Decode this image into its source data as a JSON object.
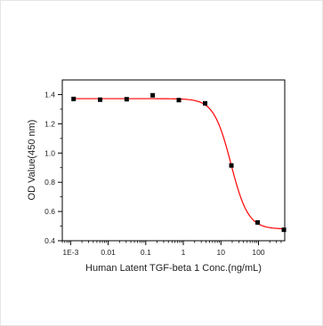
{
  "chart_data": {
    "type": "scatter",
    "title": "",
    "xlabel": "Human Latent TGF-beta 1  Conc.(ng/mL)",
    "ylabel": "OD Value(450 nm)",
    "x_scale": "log",
    "xlim": [
      0.0006,
      500
    ],
    "ylim": [
      0.4,
      1.5
    ],
    "x_ticks": [
      0.001,
      0.01,
      0.1,
      1,
      10,
      100
    ],
    "x_tick_labels": [
      "1E-3",
      "0.01",
      "0.1",
      "1",
      "10",
      "100"
    ],
    "y_ticks": [
      0.4,
      0.6,
      0.8,
      1.0,
      1.2,
      1.4
    ],
    "y_tick_labels": [
      "0.4",
      "0.6",
      "0.8",
      "1.0",
      "1.2",
      "1.4"
    ],
    "grid": false,
    "series": [
      {
        "color": "#000000",
        "marker": "square",
        "points": [
          {
            "x": 0.0012,
            "y": 1.37
          },
          {
            "x": 0.0061,
            "y": 1.365
          },
          {
            "x": 0.031,
            "y": 1.368
          },
          {
            "x": 0.153,
            "y": 1.395
          },
          {
            "x": 0.76,
            "y": 1.362
          },
          {
            "x": 3.8,
            "y": 1.34
          },
          {
            "x": 19,
            "y": 0.915
          },
          {
            "x": 95,
            "y": 0.525
          },
          {
            "x": 475,
            "y": 0.475
          }
        ]
      }
    ],
    "fit_curve": {
      "type": "4PL",
      "color": "#ff0000",
      "top": 1.372,
      "bottom": 0.48,
      "ec50": 18.5,
      "hill": 1.9
    }
  }
}
